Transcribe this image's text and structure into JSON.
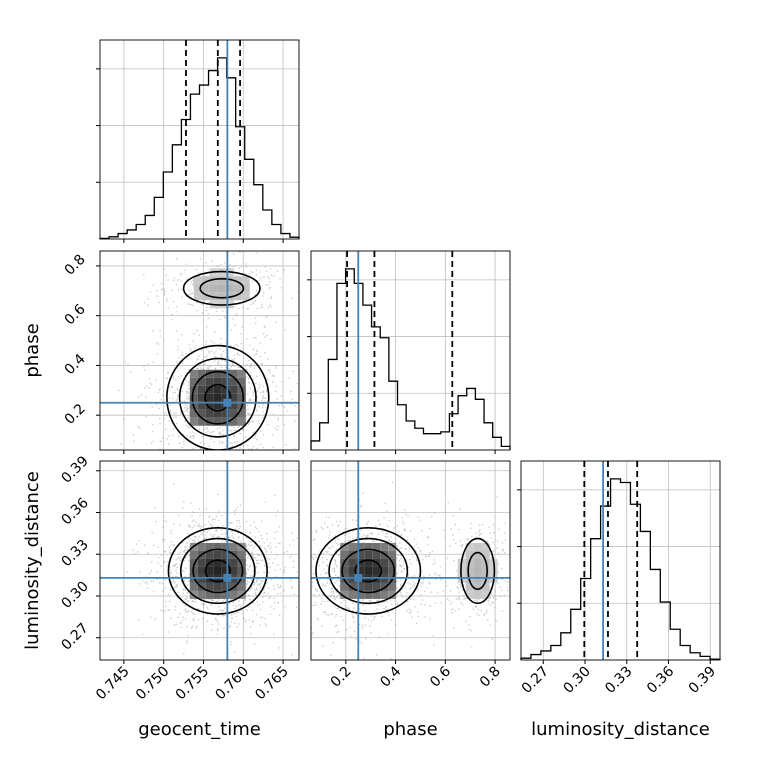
{
  "chart_data": {
    "type": "corner",
    "parameters": [
      {
        "key": "geocent_time",
        "label": "geocent_time",
        "range": [
          0.742,
          0.767
        ],
        "ticks": [
          "0.745",
          "0.750",
          "0.755",
          "0.760",
          "0.765"
        ],
        "quantiles": [
          0.7528,
          0.7568,
          0.7596
        ],
        "truth": 0.758
      },
      {
        "key": "phase",
        "label": "phase",
        "range": [
          0.06,
          0.86
        ],
        "ticks": [
          "0.2",
          "0.4",
          "0.6",
          "0.8"
        ],
        "quantiles": [
          0.205,
          0.315,
          0.628
        ],
        "truth": 0.25
      },
      {
        "key": "luminosity_distance",
        "label": "luminosity_distance",
        "range": [
          0.254,
          0.397
        ],
        "ticks": [
          "0.27",
          "0.30",
          "0.33",
          "0.36",
          "0.39"
        ],
        "quantiles": [
          0.2995,
          0.3165,
          0.3375
        ],
        "truth": 0.313
      }
    ],
    "histograms": {
      "geocent_time": [
        0.003,
        0.012,
        0.03,
        0.05,
        0.08,
        0.13,
        0.23,
        0.37,
        0.52,
        0.66,
        0.8,
        0.85,
        0.93,
        1.0,
        0.89,
        0.62,
        0.44,
        0.3,
        0.16,
        0.08,
        0.03,
        0.01
      ],
      "phase": [
        0.05,
        0.15,
        0.5,
        0.92,
        1.0,
        0.92,
        0.8,
        0.68,
        0.62,
        0.38,
        0.25,
        0.16,
        0.12,
        0.09,
        0.09,
        0.1,
        0.2,
        0.3,
        0.34,
        0.28,
        0.15,
        0.07,
        0.02
      ],
      "luminosity_distance": [
        0.01,
        0.03,
        0.05,
        0.08,
        0.15,
        0.28,
        0.45,
        0.67,
        0.85,
        1.0,
        0.98,
        0.86,
        0.71,
        0.5,
        0.32,
        0.17,
        0.08,
        0.04,
        0.02,
        0.005
      ]
    },
    "joint": [
      {
        "x": "geocent_time",
        "y": "phase",
        "modes": [
          {
            "cx": 0.7568,
            "cy": 0.27,
            "sx": 0.0032,
            "sy": 0.105,
            "w": 0.78
          },
          {
            "cx": 0.7573,
            "cy": 0.71,
            "sx": 0.0032,
            "sy": 0.045,
            "w": 0.22
          }
        ]
      },
      {
        "x": "geocent_time",
        "y": "luminosity_distance",
        "modes": [
          {
            "cx": 0.7568,
            "cy": 0.318,
            "sx": 0.0031,
            "sy": 0.0155,
            "w": 1.0
          }
        ]
      },
      {
        "x": "phase",
        "y": "luminosity_distance",
        "modes": [
          {
            "cx": 0.29,
            "cy": 0.318,
            "sx": 0.105,
            "sy": 0.0155,
            "w": 0.78
          },
          {
            "cx": 0.73,
            "cy": 0.318,
            "sx": 0.045,
            "sy": 0.0155,
            "w": 0.22
          }
        ]
      }
    ],
    "truth_color": "#4682b4",
    "quantile_style": "dashed",
    "grid": true,
    "legend": "none"
  }
}
